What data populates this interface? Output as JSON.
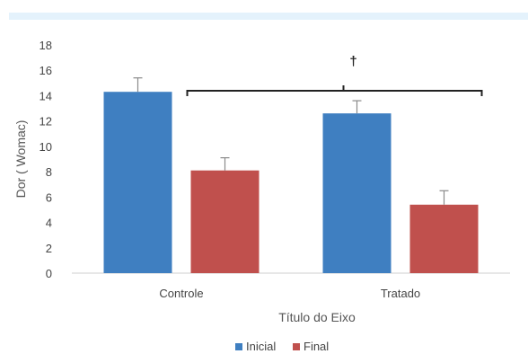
{
  "chart_data": {
    "type": "bar",
    "categories": [
      "Controle",
      "Tratado"
    ],
    "series": [
      {
        "name": "Inicial",
        "color": "#3f7fc1",
        "values": [
          14.3,
          12.6
        ],
        "errors": [
          1.1,
          1.0
        ]
      },
      {
        "name": "Final",
        "color": "#c0504d",
        "values": [
          8.1,
          5.4
        ],
        "errors": [
          1.0,
          1.1
        ]
      }
    ],
    "xlabel": "Título do Eixo",
    "ylabel": "Dor ( Womac)",
    "ylim": [
      0,
      18
    ],
    "yticks": [
      "0",
      "2",
      "4",
      "6",
      "8",
      "10",
      "12",
      "14",
      "16",
      "18"
    ],
    "grid": false,
    "legend": "bottom",
    "annotation": {
      "symbol": "†",
      "type": "bracket"
    }
  }
}
